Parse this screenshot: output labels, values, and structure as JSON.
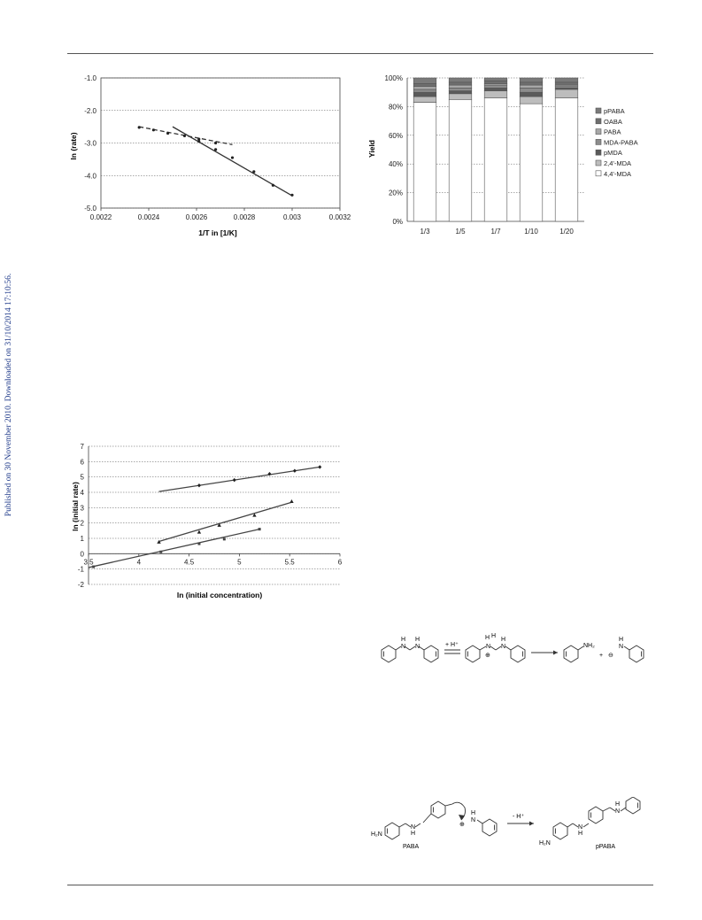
{
  "sidebar": {
    "text": "Published on 30 November 2010. Downloaded on 31/10/2014 17:10:56."
  },
  "figures": {
    "arrhenius": {
      "chart_data": {
        "type": "scatter",
        "xlabel": "1/T in [1/K]",
        "ylabel": "ln (rate)",
        "xlim": [
          0.0022,
          0.0032
        ],
        "ylim": [
          -5.0,
          -1.0
        ],
        "xticks": [
          "0.0022",
          "0.0024",
          "0.0026",
          "0.0028",
          "0.003",
          "0.0032"
        ],
        "yticks": [
          "-1.0",
          "-2.0",
          "-3.0",
          "-4.0",
          "-5.0"
        ],
        "grid": "horizontal",
        "series": [
          {
            "style": "dashed",
            "points": [
              [
                0.00236,
                -2.52
              ],
              [
                0.00242,
                -2.6
              ],
              [
                0.00248,
                -2.7
              ],
              [
                0.00255,
                -2.78
              ],
              [
                0.00261,
                -2.88
              ],
              [
                0.00268,
                -3.0
              ]
            ],
            "fit": [
              [
                0.00236,
                -2.5
              ],
              [
                0.00275,
                -3.05
              ]
            ]
          },
          {
            "style": "solid",
            "points": [
              [
                0.00261,
                -2.95
              ],
              [
                0.00268,
                -3.2
              ],
              [
                0.00275,
                -3.45
              ],
              [
                0.00284,
                -3.88
              ],
              [
                0.00292,
                -4.3
              ],
              [
                0.003,
                -4.6
              ]
            ],
            "fit": [
              [
                0.0025,
                -2.5
              ],
              [
                0.003,
                -4.62
              ]
            ]
          }
        ]
      }
    },
    "yield": {
      "chart_data": {
        "type": "bar",
        "stacked": true,
        "ylabel": "Yield",
        "categories": [
          "1/3",
          "1/5",
          "1/7",
          "1/10",
          "1/20"
        ],
        "yticks": [
          "100%",
          "80%",
          "60%",
          "40%",
          "20%",
          "0%"
        ],
        "ylim": [
          0,
          100
        ],
        "legend_position": "right",
        "series": [
          {
            "name": "4,4'-MDA",
            "color": "#ffffff",
            "values": [
              83,
              85,
              86,
              82,
              86
            ]
          },
          {
            "name": "2,4'-MDA",
            "color": "#bdbdbd",
            "values": [
              4,
              4,
              5,
              5,
              6
            ]
          },
          {
            "name": "pMDA",
            "color": "#5a5a5a",
            "values": [
              3,
              2,
              2,
              3,
              1
            ]
          },
          {
            "name": "MDA-PABA",
            "color": "#8c8c8c",
            "values": [
              2,
              2,
              2,
              3,
              1
            ]
          },
          {
            "name": "PABA",
            "color": "#a8a8a8",
            "values": [
              2,
              2,
              1,
              2,
              1
            ]
          },
          {
            "name": "OABA",
            "color": "#6e6e6e",
            "values": [
              2,
              2,
              2,
              2,
              2
            ]
          },
          {
            "name": "pPABA",
            "color": "#7a7a7a",
            "values": [
              4,
              3,
              2,
              3,
              3
            ]
          }
        ]
      }
    },
    "order": {
      "chart_data": {
        "type": "scatter",
        "xlabel": "ln (initial concentration)",
        "ylabel": "ln (initial rate)",
        "xlim": [
          3.5,
          6
        ],
        "ylim": [
          -2,
          7
        ],
        "xticks": [
          "3.5",
          "4",
          "4.5",
          "5",
          "5.5",
          "6"
        ],
        "yticks": [
          "7",
          "6",
          "5",
          "4",
          "3",
          "2",
          "1",
          "0",
          "-1",
          "-2"
        ],
        "grid": "horizontal",
        "series": [
          {
            "marker": "diamond",
            "points": [
              [
                4.6,
                4.45
              ],
              [
                4.95,
                4.8
              ],
              [
                5.3,
                5.2
              ],
              [
                5.55,
                5.4
              ],
              [
                5.8,
                5.65
              ]
            ],
            "fit": [
              [
                4.2,
                4.05
              ],
              [
                5.8,
                5.65
              ]
            ]
          },
          {
            "marker": "triangle",
            "points": [
              [
                4.2,
                0.75
              ],
              [
                4.6,
                1.4
              ],
              [
                4.8,
                1.85
              ],
              [
                5.15,
                2.5
              ],
              [
                5.52,
                3.4
              ]
            ],
            "fit": [
              [
                4.2,
                0.8
              ],
              [
                5.52,
                3.35
              ]
            ]
          },
          {
            "marker": "square",
            "points": [
              [
                3.55,
                -0.85
              ],
              [
                4.22,
                0.12
              ],
              [
                4.6,
                0.65
              ],
              [
                4.85,
                0.95
              ],
              [
                5.2,
                1.6
              ]
            ],
            "fit": [
              [
                3.5,
                -0.9
              ],
              [
                5.2,
                1.6
              ]
            ]
          }
        ]
      }
    },
    "scheme1": {
      "labels": {
        "nh_left": "H",
        "n_left": "N",
        "proton": "+ H⁺",
        "h_top1": "H",
        "h_top2": "H",
        "n_mid": "N",
        "charge_mid": "⊕",
        "nh2": "NH₂",
        "plus": "+",
        "anion": "⊖",
        "n_right": "N",
        "h_right": "H"
      }
    },
    "scheme2": {
      "labels": {
        "h2n_left": "H₂N",
        "nh_left": "H",
        "n_left": "N",
        "paba": "PABA",
        "charge": "⊕",
        "n_attack": "N",
        "h_attack": "H",
        "minus_h": "- H⁺",
        "h2n_right": "H₂N",
        "n_right1": "N",
        "h_right1": "H",
        "n_right2": "N",
        "h_right2": "H",
        "ppaba": "pPABA"
      }
    }
  }
}
